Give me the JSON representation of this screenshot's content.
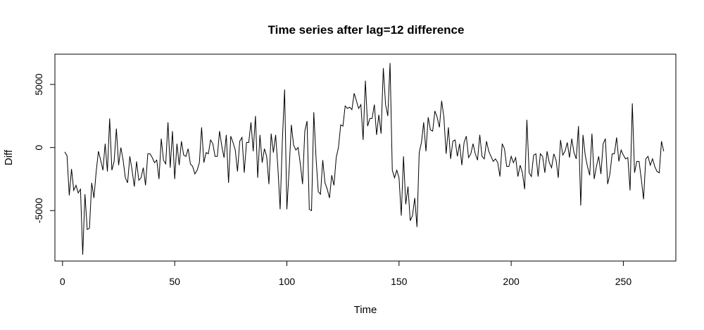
{
  "chart_data": {
    "type": "line",
    "title": "Time series after lag=12 difference",
    "xlabel": "Time",
    "ylabel": "Diff",
    "xlim": [
      -3.4,
      273.4
    ],
    "ylim": [
      -9000,
      7400
    ],
    "xticks": [
      0,
      50,
      100,
      150,
      200,
      250
    ],
    "xtick_labels": [
      "0",
      "50",
      "100",
      "150",
      "200",
      "250"
    ],
    "yticks": [
      -5000,
      0,
      5000
    ],
    "ytick_labels": [
      "-5000",
      "0",
      "5000"
    ],
    "grid": false,
    "legend": "none",
    "series": [
      {
        "x_start": 1,
        "values": [
          -350,
          -650,
          -3800,
          -1700,
          -3400,
          -3000,
          -3600,
          -3300,
          -8500,
          -3700,
          -6500,
          -6400,
          -2800,
          -4000,
          -1900,
          -300,
          -1000,
          -1800,
          300,
          -1900,
          2300,
          -1800,
          -1100,
          1500,
          -1400,
          0,
          -1000,
          -2400,
          -2800,
          -700,
          -1800,
          -3100,
          -1100,
          -2600,
          -2400,
          -1600,
          -3000,
          -500,
          -500,
          -800,
          -1200,
          -1000,
          -2500,
          700,
          -1000,
          -1300,
          2000,
          -1600,
          1300,
          -2500,
          300,
          -1400,
          500,
          -600,
          -700,
          -100,
          -1300,
          -1500,
          -2100,
          -1800,
          -1200,
          1600,
          -1200,
          -400,
          -500,
          600,
          300,
          -700,
          -700,
          1300,
          100,
          -800,
          1000,
          -2800,
          900,
          400,
          -200,
          -1900,
          500,
          800,
          -2000,
          400,
          400,
          2000,
          -300,
          2500,
          -2400,
          1000,
          -1200,
          -100,
          -700,
          -2900,
          1100,
          -400,
          1000,
          -1600,
          -4900,
          600,
          4600,
          -4900,
          -1800,
          1800,
          200,
          -200,
          0,
          -1300,
          -2900,
          1300,
          2100,
          -4900,
          -5000,
          2800,
          -800,
          -3500,
          -3700,
          -1000,
          -2800,
          -3300,
          -4000,
          -2200,
          -3000,
          -800,
          0,
          1800,
          1700,
          3300,
          3100,
          3200,
          3000,
          4300,
          3700,
          3100,
          3400,
          600,
          5300,
          1700,
          2300,
          2300,
          3400,
          1000,
          2600,
          1100,
          6300,
          3400,
          2500,
          6700,
          -1800,
          -2400,
          -1800,
          -2400,
          -5400,
          -700,
          -4500,
          -3100,
          -5800,
          -5400,
          -4000,
          -6300,
          -400,
          400,
          2000,
          -300,
          2400,
          1400,
          1300,
          2900,
          2400,
          1600,
          3700,
          2400,
          -500,
          1600,
          -900,
          500,
          600,
          -700,
          300,
          -1400,
          400,
          900,
          -800,
          -500,
          300,
          -500,
          -1000,
          1000,
          -700,
          -900,
          500,
          -300,
          -700,
          -1100,
          -900,
          -1200,
          -2300,
          300,
          -100,
          -1500,
          -1500,
          -700,
          -1200,
          -800,
          -2300,
          -1400,
          -2000,
          -3300,
          2200,
          -2000,
          -2300,
          -600,
          -500,
          -2300,
          -500,
          -700,
          -2000,
          -300,
          -1200,
          -1600,
          -500,
          -1000,
          -2400,
          600,
          -600,
          -300,
          400,
          -800,
          700,
          -400,
          -900,
          1700,
          -4600,
          1000,
          -600,
          -1500,
          -2200,
          1100,
          -2500,
          -1500,
          -700,
          -2100,
          300,
          700,
          -2900,
          -2100,
          -500,
          -500,
          800,
          -1100,
          -200,
          -600,
          -900,
          -800,
          -3400,
          3500,
          -2000,
          -1100,
          -1100,
          -2500,
          -4100,
          -900,
          -700,
          -1400,
          -900,
          -1500,
          -1900,
          -2000,
          500,
          -300
        ]
      }
    ]
  }
}
